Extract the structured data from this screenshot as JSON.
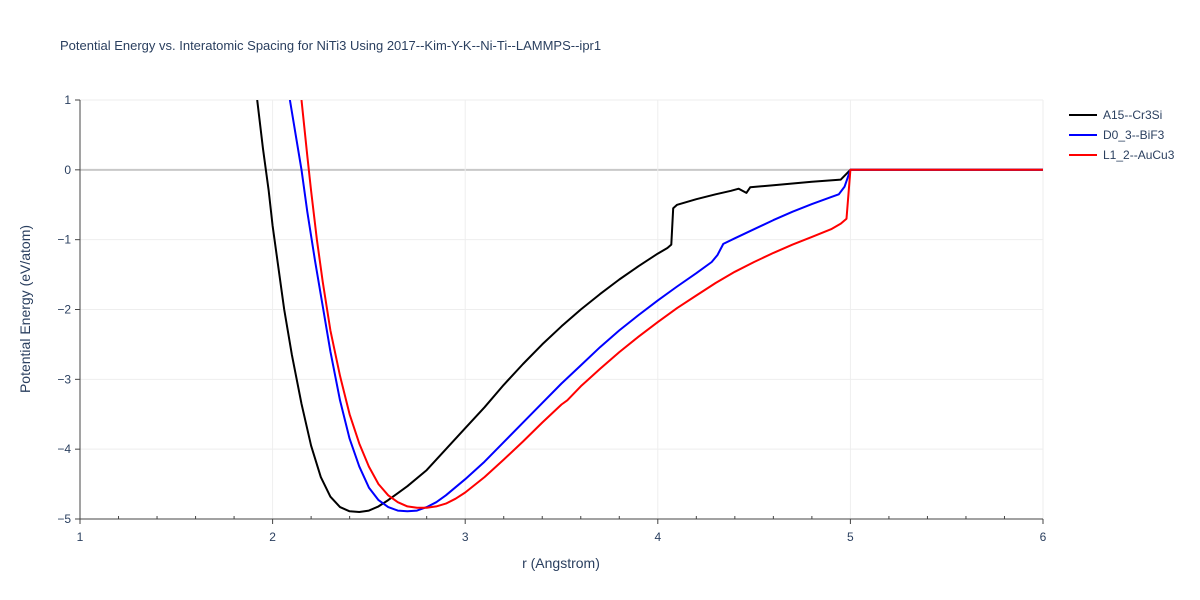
{
  "chart_data": {
    "type": "line",
    "title": "Potential Energy vs. Interatomic Spacing for NiTi3 Using 2017--Kim-Y-K--Ni-Ti--LAMMPS--ipr1",
    "xlabel": "r (Angstrom)",
    "ylabel": "Potential Energy (eV/atom)",
    "xlim": [
      1,
      6
    ],
    "ylim": [
      -5,
      1
    ],
    "x_ticks": [
      "1",
      "2",
      "3",
      "4",
      "5",
      "6"
    ],
    "y_ticks": [
      "1",
      "0",
      "−1",
      "−2",
      "−3",
      "−4",
      "−5"
    ],
    "y_tick_values": [
      1,
      0,
      -1,
      -2,
      -3,
      -4,
      -5
    ],
    "x_tick_values": [
      1,
      2,
      3,
      4,
      5,
      6
    ],
    "grid": true,
    "legend_position": "top-right",
    "series": [
      {
        "name": "A15--Cr3Si",
        "color": "#000000",
        "x": [
          1.92,
          1.95,
          1.98,
          2.0,
          2.03,
          2.06,
          2.1,
          2.15,
          2.2,
          2.25,
          2.3,
          2.35,
          2.4,
          2.45,
          2.5,
          2.55,
          2.6,
          2.65,
          2.7,
          2.8,
          2.9,
          3.0,
          3.1,
          3.2,
          3.3,
          3.4,
          3.5,
          3.6,
          3.7,
          3.8,
          3.9,
          4.0,
          4.05,
          4.07,
          4.08,
          4.1,
          4.2,
          4.3,
          4.38,
          4.42,
          4.46,
          4.48,
          4.6,
          4.8,
          4.95,
          5.0,
          6.0
        ],
        "values": [
          1.0,
          0.3,
          -0.3,
          -0.8,
          -1.4,
          -2.0,
          -2.65,
          -3.35,
          -3.95,
          -4.4,
          -4.68,
          -4.83,
          -4.89,
          -4.9,
          -4.88,
          -4.82,
          -4.73,
          -4.63,
          -4.53,
          -4.3,
          -4.0,
          -3.7,
          -3.4,
          -3.08,
          -2.78,
          -2.5,
          -2.24,
          -2.0,
          -1.78,
          -1.57,
          -1.38,
          -1.2,
          -1.12,
          -1.07,
          -0.55,
          -0.5,
          -0.42,
          -0.35,
          -0.3,
          -0.27,
          -0.33,
          -0.25,
          -0.22,
          -0.17,
          -0.14,
          0.0,
          0.0
        ]
      },
      {
        "name": "D0_3--BiF3",
        "color": "#0000ff",
        "x": [
          2.09,
          2.12,
          2.15,
          2.18,
          2.22,
          2.26,
          2.3,
          2.35,
          2.4,
          2.45,
          2.5,
          2.55,
          2.6,
          2.65,
          2.7,
          2.75,
          2.8,
          2.85,
          2.9,
          3.0,
          3.1,
          3.2,
          3.3,
          3.4,
          3.5,
          3.6,
          3.7,
          3.8,
          3.9,
          4.0,
          4.1,
          4.2,
          4.28,
          4.31,
          4.34,
          4.4,
          4.5,
          4.6,
          4.7,
          4.8,
          4.9,
          4.94,
          4.97,
          5.0,
          6.0
        ],
        "values": [
          1.0,
          0.5,
          0.0,
          -0.6,
          -1.3,
          -1.95,
          -2.6,
          -3.3,
          -3.85,
          -4.25,
          -4.55,
          -4.73,
          -4.83,
          -4.88,
          -4.89,
          -4.88,
          -4.83,
          -4.76,
          -4.66,
          -4.43,
          -4.18,
          -3.9,
          -3.62,
          -3.34,
          -3.06,
          -2.8,
          -2.54,
          -2.3,
          -2.08,
          -1.87,
          -1.67,
          -1.48,
          -1.32,
          -1.22,
          -1.06,
          -0.98,
          -0.85,
          -0.72,
          -0.6,
          -0.49,
          -0.39,
          -0.35,
          -0.24,
          0.0,
          0.0
        ]
      },
      {
        "name": "L1_2--AuCu3",
        "color": "#ff0000",
        "x": [
          2.15,
          2.18,
          2.2,
          2.23,
          2.26,
          2.3,
          2.35,
          2.4,
          2.45,
          2.5,
          2.55,
          2.6,
          2.65,
          2.7,
          2.75,
          2.8,
          2.85,
          2.9,
          2.95,
          3.0,
          3.1,
          3.2,
          3.3,
          3.4,
          3.5,
          3.53,
          3.6,
          3.7,
          3.8,
          3.9,
          4.0,
          4.1,
          4.2,
          4.3,
          4.4,
          4.5,
          4.6,
          4.7,
          4.8,
          4.9,
          4.95,
          4.98,
          5.0,
          6.0
        ],
        "values": [
          1.0,
          0.2,
          -0.3,
          -1.0,
          -1.6,
          -2.3,
          -2.95,
          -3.5,
          -3.92,
          -4.25,
          -4.5,
          -4.66,
          -4.76,
          -4.82,
          -4.84,
          -4.84,
          -4.82,
          -4.78,
          -4.71,
          -4.62,
          -4.4,
          -4.15,
          -3.89,
          -3.62,
          -3.36,
          -3.3,
          -3.1,
          -2.85,
          -2.61,
          -2.39,
          -2.18,
          -1.98,
          -1.8,
          -1.62,
          -1.46,
          -1.32,
          -1.19,
          -1.07,
          -0.96,
          -0.85,
          -0.77,
          -0.7,
          0.0,
          0.0
        ]
      }
    ]
  }
}
